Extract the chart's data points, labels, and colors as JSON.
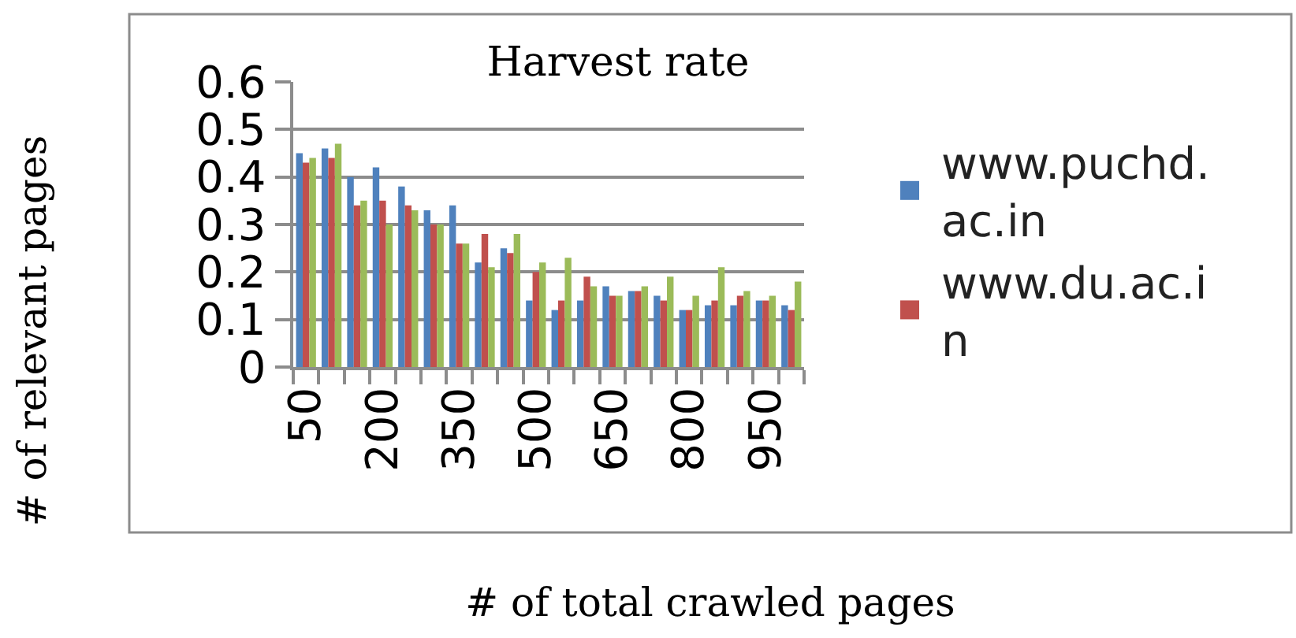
{
  "chart_data": {
    "type": "bar",
    "title": "Harvest rate",
    "xlabel": "# of total crawled pages",
    "ylabel": "# of relevant pages",
    "categories": [
      "50",
      null,
      null,
      "200",
      null,
      null,
      "350",
      null,
      null,
      "500",
      null,
      null,
      "650",
      null,
      null,
      "800",
      null,
      null,
      "950",
      null
    ],
    "series": [
      {
        "name": "www.puchd.ac.in",
        "color": "#4f81bd",
        "values": [
          0.45,
          0.46,
          0.4,
          0.42,
          0.38,
          0.33,
          0.34,
          0.22,
          0.25,
          0.14,
          0.12,
          0.14,
          0.17,
          0.16,
          0.15,
          0.12,
          0.13,
          0.13,
          0.14,
          0.13
        ]
      },
      {
        "name": "www.du.ac.in",
        "color": "#c0504d",
        "values": [
          0.43,
          0.44,
          0.34,
          0.35,
          0.34,
          0.3,
          0.26,
          0.28,
          0.24,
          0.2,
          0.14,
          0.19,
          0.15,
          0.16,
          0.14,
          0.12,
          0.14,
          0.15,
          0.14,
          0.12
        ]
      },
      {
        "color": "#9bbb59",
        "values": [
          0.44,
          0.47,
          0.35,
          0.3,
          0.33,
          0.3,
          0.26,
          0.21,
          0.28,
          0.22,
          0.23,
          0.17,
          0.15,
          0.17,
          0.19,
          0.15,
          0.21,
          0.16,
          0.15,
          0.18
        ]
      }
    ],
    "ylim": [
      0,
      0.6
    ],
    "yticks": [
      0,
      0.1,
      0.2,
      0.3,
      0.4,
      0.5,
      0.6
    ],
    "grid": "y",
    "legend": "right"
  }
}
